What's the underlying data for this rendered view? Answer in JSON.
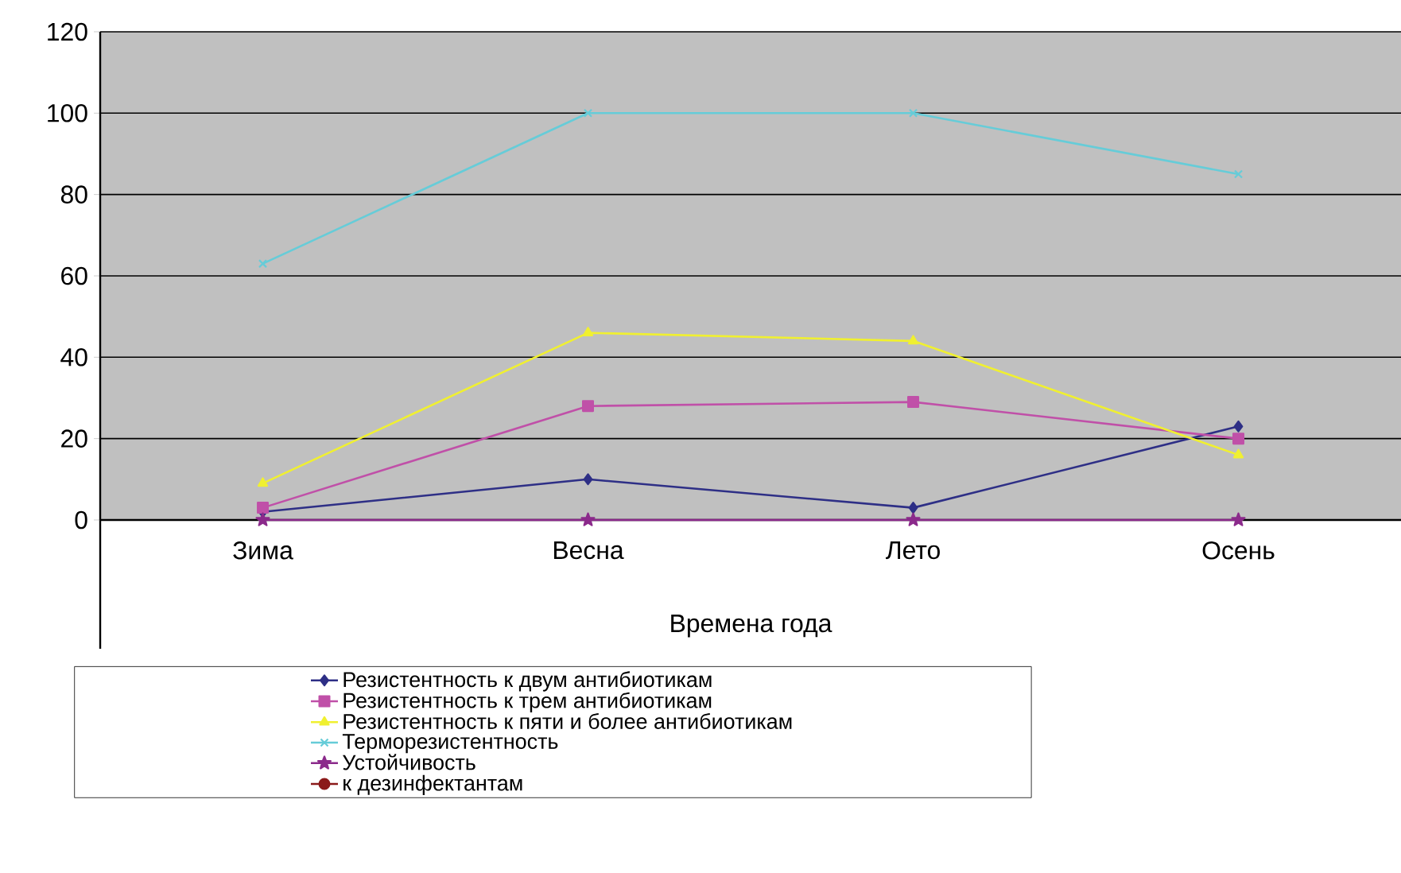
{
  "chart_data": {
    "type": "line",
    "xlabel": "Времена года",
    "categories": [
      "Зима",
      "Весна",
      "Лето",
      "Осень"
    ],
    "series": [
      {
        "name": "Резистентность к двум антибиотикам",
        "color": "#2e2f86",
        "marker": "diamond",
        "values": [
          2,
          10,
          3,
          23
        ]
      },
      {
        "name": "Резистентность к трем антибиотикам",
        "color": "#c050a8",
        "marker": "square",
        "values": [
          3,
          28,
          29,
          20
        ]
      },
      {
        "name": "Резистентность к пяти и более антибиотикам",
        "color": "#f0f030",
        "marker": "triangle",
        "values": [
          9,
          46,
          44,
          16
        ]
      },
      {
        "name": "Терморезистентность",
        "color": "#66ccd8",
        "marker": "cross",
        "values": [
          63,
          100,
          100,
          85
        ]
      },
      {
        "name": "Устойчивость",
        "color": "#8b2a8b",
        "marker": "star",
        "values": [
          0,
          0,
          0,
          0
        ]
      },
      {
        "name": "к дезинфектантам",
        "color": "#8b1a1a",
        "marker": "circle",
        "values": [
          null,
          null,
          null,
          null
        ]
      }
    ],
    "ylim": [
      0,
      120
    ],
    "yticks": [
      0,
      20,
      40,
      60,
      80,
      100,
      120
    ],
    "grid": "y",
    "legend": "bottom"
  }
}
